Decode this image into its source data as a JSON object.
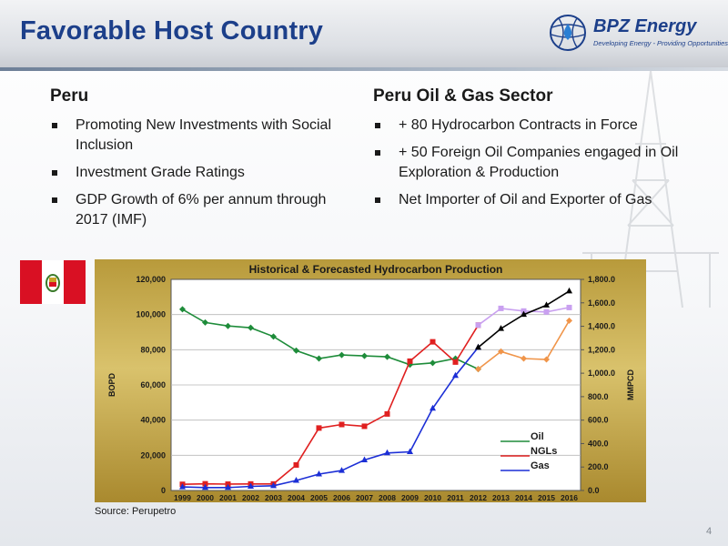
{
  "slide": {
    "title": "Favorable Host Country",
    "logo_name": "BPZ Energy",
    "logo_tagline": "Developing Energy - Providing Opportunities",
    "page_number": "4"
  },
  "left": {
    "heading": "Peru",
    "bullets": [
      "Promoting New Investments with Social Inclusion",
      "Investment Grade Ratings",
      "GDP Growth of 6% per annum through 2017 (IMF)"
    ]
  },
  "right": {
    "heading": "Peru Oil & Gas Sector",
    "bullets": [
      "+ 80 Hydrocarbon Contracts in Force",
      "+ 50 Foreign Oil Companies engaged in Oil Exploration & Production",
      "Net Importer of Oil and Exporter of Gas"
    ]
  },
  "source": "Source: Perupetro",
  "colors": {
    "title": "#1c3f8a",
    "oil": "#1e8c3a",
    "ngl": "#e02020",
    "gas": "#1c2fd6",
    "oil_forecast": "#f0954a",
    "ngl_forecast": "#c9a0f0",
    "gas_forecast": "#000000"
  },
  "chart_data": {
    "type": "line",
    "title": "Historical & Forecasted Hydrocarbon Production",
    "ylabel": "BOPD",
    "y2label": "MMPCD",
    "ylim": [
      0,
      120000
    ],
    "y2lim": [
      0,
      1800
    ],
    "yticks": [
      "0",
      "20,000",
      "40,000",
      "60,000",
      "80,000",
      "100,000",
      "120,000"
    ],
    "y2ticks": [
      "0.0",
      "200.0",
      "400.0",
      "600.0",
      "800.0",
      "1,000.0",
      "1,200.0",
      "1,400.0",
      "1,600.0",
      "1,800.0"
    ],
    "categories": [
      "1999",
      "2000",
      "2001",
      "2002",
      "2003",
      "2004",
      "2005",
      "2006",
      "2007",
      "2008",
      "2009",
      "2010",
      "2011",
      "2012",
      "2013",
      "2014",
      "2015",
      "2016"
    ],
    "grid": true,
    "legend_position": "bottom-right",
    "series": [
      {
        "name": "Oil",
        "axis": "left",
        "values": [
          103000,
          95500,
          93500,
          92500,
          87500,
          79500,
          75000,
          77000,
          76500,
          76000,
          71500,
          72500,
          75000,
          69000,
          null,
          null,
          null,
          null
        ]
      },
      {
        "name": "Oil forecast",
        "axis": "left",
        "values": [
          null,
          null,
          null,
          null,
          null,
          null,
          null,
          null,
          null,
          null,
          null,
          null,
          null,
          69000,
          79000,
          75000,
          74500,
          96500
        ]
      },
      {
        "name": "NGLs",
        "axis": "left",
        "values": [
          3500,
          3800,
          3600,
          3700,
          3700,
          14500,
          35500,
          37500,
          36500,
          43500,
          73500,
          84500,
          73000,
          94000,
          null,
          null,
          null,
          null
        ]
      },
      {
        "name": "NGLs forecast",
        "axis": "left",
        "values": [
          null,
          null,
          null,
          null,
          null,
          null,
          null,
          null,
          null,
          null,
          null,
          null,
          null,
          94000,
          103500,
          102000,
          101500,
          104000
        ]
      },
      {
        "name": "Gas",
        "axis": "right",
        "values": [
          30,
          25,
          25,
          35,
          40,
          85,
          140,
          170,
          260,
          320,
          330,
          700,
          980,
          1220,
          null,
          null,
          null,
          null
        ]
      },
      {
        "name": "Gas forecast",
        "axis": "right",
        "values": [
          null,
          null,
          null,
          null,
          null,
          null,
          null,
          null,
          null,
          null,
          null,
          null,
          null,
          1220,
          1380,
          1500,
          1580,
          1700
        ]
      }
    ]
  }
}
